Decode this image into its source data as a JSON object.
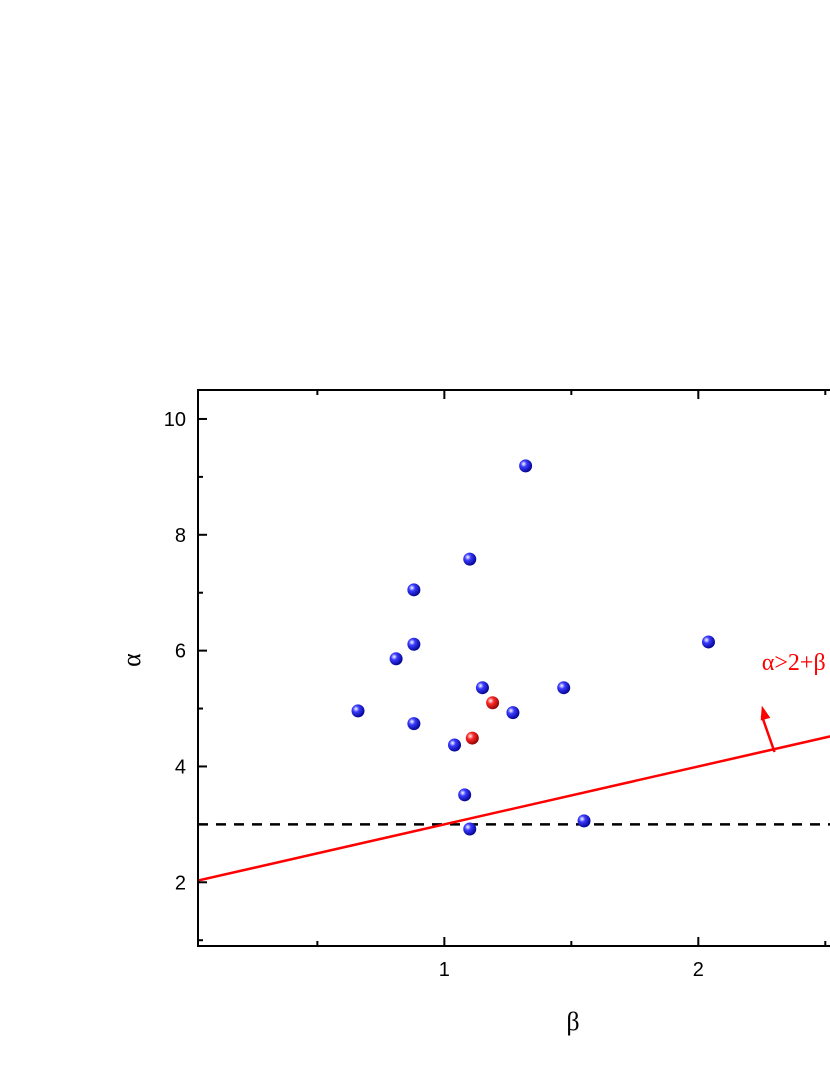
{
  "chart_data": {
    "type": "scatter",
    "xlabel": "β",
    "ylabel": "α",
    "xlim": [
      0.03,
      2.55
    ],
    "ylim": [
      0.9,
      10.5
    ],
    "x_ticks": [
      1,
      2
    ],
    "x_tick_labels": [
      "1",
      "2"
    ],
    "y_ticks": [
      2,
      4,
      6,
      8,
      10
    ],
    "y_tick_labels": [
      "2",
      "4",
      "6",
      "8",
      "10"
    ],
    "series": [
      {
        "color": "#0000ee",
        "points": [
          {
            "x": 0.66,
            "y": 4.96
          },
          {
            "x": 0.81,
            "y": 5.86
          },
          {
            "x": 0.88,
            "y": 7.05
          },
          {
            "x": 0.88,
            "y": 6.11
          },
          {
            "x": 0.88,
            "y": 4.74
          },
          {
            "x": 1.04,
            "y": 4.37
          },
          {
            "x": 1.08,
            "y": 3.51
          },
          {
            "x": 1.1,
            "y": 2.92
          },
          {
            "x": 1.1,
            "y": 7.58
          },
          {
            "x": 1.15,
            "y": 5.36
          },
          {
            "x": 1.27,
            "y": 4.93
          },
          {
            "x": 1.32,
            "y": 9.19
          },
          {
            "x": 1.47,
            "y": 5.36
          },
          {
            "x": 1.55,
            "y": 3.06
          },
          {
            "x": 2.04,
            "y": 6.15
          }
        ]
      },
      {
        "color": "#ee0000",
        "points": [
          {
            "x": 1.11,
            "y": 4.49
          },
          {
            "x": 1.19,
            "y": 5.1
          }
        ]
      }
    ],
    "reference_lines": [
      {
        "kind": "dashed",
        "color": "#000000",
        "y": 3.0
      },
      {
        "kind": "solid",
        "color": "#ff0000",
        "slope": 1,
        "intercept": 2
      }
    ],
    "annotation": {
      "text": "α>2+β",
      "color": "#ff0000",
      "arrow_from": [
        2.3,
        4.25
      ],
      "arrow_to": [
        2.25,
        5.05
      ],
      "text_at": [
        2.25,
        5.8
      ]
    },
    "grid": false
  }
}
